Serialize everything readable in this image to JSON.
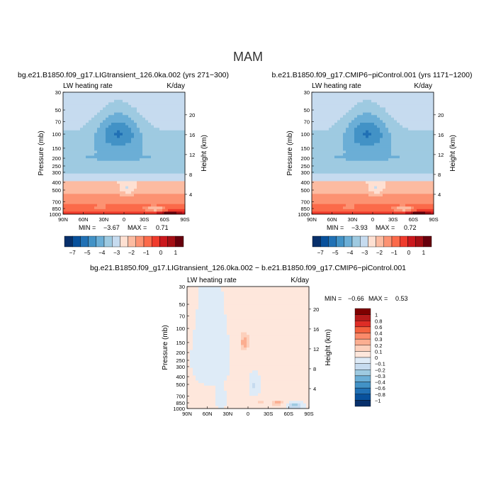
{
  "page": {
    "title": "MAM"
  },
  "palettes": {
    "full": [
      "#08306b",
      "#08519c",
      "#2171b5",
      "#4292c6",
      "#6baed6",
      "#9ecae1",
      "#c6dbef",
      "#fee0d2",
      "#fcbba1",
      "#fc9272",
      "#fb6a4a",
      "#ef3b2c",
      "#cb181d",
      "#a50f15",
      "#67000d"
    ],
    "diff": [
      "#08306b",
      "#08519c",
      "#2171b5",
      "#4292c6",
      "#6baed6",
      "#9ecae1",
      "#c6dbef",
      "#deebf7",
      "#fee7dc",
      "#fdd0bc",
      "#fcae91",
      "#fb8a6a",
      "#f4623f",
      "#de2d26",
      "#b61a1a",
      "#7f0000"
    ]
  },
  "chart_data": [
    {
      "type": "heatmap",
      "title": "bg.e21.B1850.f09_g17.LIGtransient_126.0ka.002 (yrs 271−300)",
      "left_label": "LW heating rate",
      "right_label": "K/day",
      "xlabel": "",
      "ylabel": "Pressure (mb)",
      "y2label": "Height (km)",
      "x_ticks": [
        "90N",
        "60N",
        "30N",
        "0",
        "30S",
        "60S",
        "90S"
      ],
      "y_ticks": [
        "30",
        "50",
        "70",
        "100",
        "150",
        "200",
        "250",
        "300",
        "400",
        "500",
        "700",
        "850",
        "1000"
      ],
      "height_ticks": [
        "20",
        "16",
        "12",
        "8",
        "4"
      ],
      "min_label": "MIN =",
      "min_value": "−3.67",
      "max_label": "MAX =",
      "max_value": "0.71",
      "colorbar_labels": [
        "−7",
        "−5",
        "−4",
        "−3",
        "−2",
        "−1",
        "0",
        "1"
      ],
      "scale": "full",
      "levels": [
        -7,
        -6,
        -5,
        -4.5,
        -4,
        -3.5,
        -3,
        -2.5,
        -2,
        -1.5,
        -1,
        -0.5,
        0,
        0.5,
        1
      ],
      "field": "climo",
      "extremes": [
        -3.67,
        0.71
      ]
    },
    {
      "type": "heatmap",
      "title": "b.e21.B1850.f09_g17.CMIP6−piControl.001 (yrs 1171−1200)",
      "left_label": "LW heating rate",
      "right_label": "K/day",
      "xlabel": "",
      "ylabel": "Pressure (mb)",
      "y2label": "Height (km)",
      "x_ticks": [
        "90N",
        "60N",
        "30N",
        "0",
        "30S",
        "60S",
        "90S"
      ],
      "y_ticks": [
        "30",
        "50",
        "70",
        "100",
        "150",
        "200",
        "250",
        "300",
        "400",
        "500",
        "700",
        "850",
        "1000"
      ],
      "height_ticks": [
        "20",
        "16",
        "12",
        "8",
        "4"
      ],
      "min_label": "MIN =",
      "min_value": "−3.93",
      "max_label": "MAX =",
      "max_value": "0.72",
      "colorbar_labels": [
        "−7",
        "−5",
        "−4",
        "−3",
        "−2",
        "−1",
        "0",
        "1"
      ],
      "scale": "full",
      "levels": [
        -7,
        -6,
        -5,
        -4.5,
        -4,
        -3.5,
        -3,
        -2.5,
        -2,
        -1.5,
        -1,
        -0.5,
        0,
        0.5,
        1
      ],
      "field": "climo",
      "extremes": [
        -3.93,
        0.72
      ]
    },
    {
      "type": "heatmap",
      "title": "bg.e21.B1850.f09_g17.LIGtransient_126.0ka.002 − b.e21.B1850.f09_g17.CMIP6−piControl.001",
      "left_label": "LW heating rate",
      "right_label": "K/day",
      "xlabel": "",
      "ylabel": "Pressure (mb)",
      "y2label": "Height (km)",
      "x_ticks": [
        "90N",
        "60N",
        "30N",
        "0",
        "30S",
        "60S",
        "90S"
      ],
      "y_ticks": [
        "30",
        "50",
        "70",
        "100",
        "150",
        "200",
        "250",
        "300",
        "400",
        "500",
        "700",
        "850",
        "1000"
      ],
      "height_ticks": [
        "20",
        "16",
        "12",
        "8",
        "4"
      ],
      "min_label": "MIN =",
      "min_value": "−0.66",
      "max_label": "MAX =",
      "max_value": "0.53",
      "colorbar_labels": [
        "1",
        "0.8",
        "0.6",
        "0.4",
        "0.3",
        "0.2",
        "0.1",
        "0",
        "−0.1",
        "−0.2",
        "−0.3",
        "−0.4",
        "−0.6",
        "−0.8",
        "−1"
      ],
      "scale": "diff",
      "levels": [
        -1,
        -0.8,
        -0.6,
        -0.4,
        -0.3,
        -0.2,
        -0.1,
        0,
        0.1,
        0.2,
        0.3,
        0.4,
        0.6,
        0.8,
        1
      ],
      "field": "diff",
      "extremes": [
        -0.66,
        0.53
      ]
    }
  ]
}
